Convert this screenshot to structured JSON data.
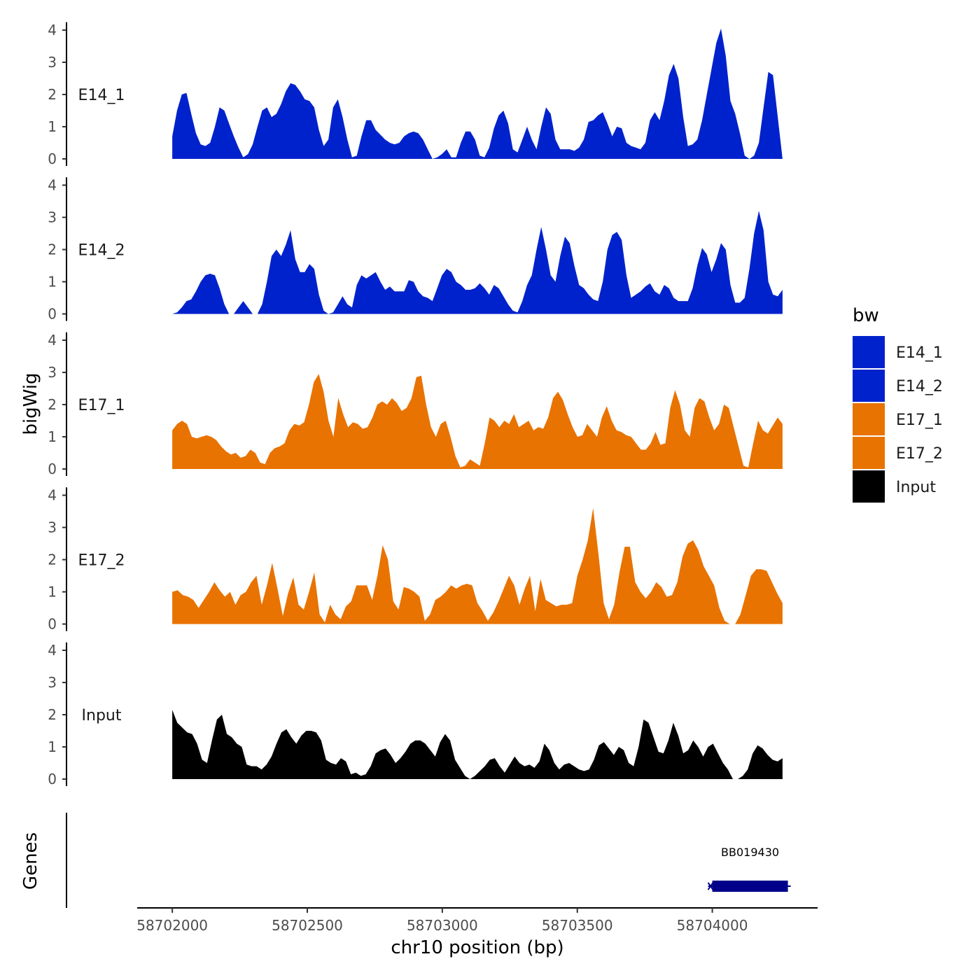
{
  "chart_data": {
    "type": "area",
    "title": "",
    "ylabel": "bigWig",
    "xlabel": "chr10 position (bp)",
    "genes_label": "Genes",
    "ylim": [
      0,
      4.2
    ],
    "yticks": [
      0,
      1,
      2,
      3,
      4
    ],
    "xlim": [
      58701870,
      58704390
    ],
    "xticks": [
      58702000,
      58702500,
      58703000,
      58703500,
      58704000
    ],
    "x_start": 58702000,
    "x_end": 58704260,
    "legend": {
      "title": "bw",
      "entries": [
        {
          "name": "E14_1",
          "color": "#0022CC"
        },
        {
          "name": "E14_2",
          "color": "#0022CC"
        },
        {
          "name": "E17_1",
          "color": "#E87300"
        },
        {
          "name": "E17_2",
          "color": "#E87300"
        },
        {
          "name": "Input",
          "color": "#000000"
        }
      ]
    },
    "series": [
      {
        "name": "E14_1",
        "color": "#0022CC",
        "values": [
          0.7,
          1.5,
          2.0,
          2.05,
          1.4,
          0.8,
          0.45,
          0.4,
          0.5,
          1.0,
          1.6,
          1.5,
          1.1,
          0.7,
          0.35,
          0.05,
          0.15,
          0.45,
          1.0,
          1.5,
          1.6,
          1.3,
          1.4,
          1.7,
          2.1,
          2.35,
          2.3,
          2.1,
          1.85,
          1.8,
          1.6,
          0.9,
          0.4,
          0.6,
          1.6,
          1.85,
          1.3,
          0.6,
          0.05,
          0.1,
          0.7,
          1.2,
          1.2,
          0.9,
          0.75,
          0.6,
          0.5,
          0.45,
          0.5,
          0.7,
          0.8,
          0.85,
          0.8,
          0.6,
          0.3,
          0.0,
          0.05,
          0.15,
          0.3,
          0.05,
          0.05,
          0.5,
          0.85,
          0.85,
          0.6,
          0.1,
          0.05,
          0.35,
          0.95,
          1.35,
          1.5,
          1.1,
          0.3,
          0.2,
          0.6,
          1.0,
          0.6,
          0.3,
          1.0,
          1.6,
          1.4,
          0.6,
          0.3,
          0.3,
          0.3,
          0.25,
          0.35,
          0.6,
          1.15,
          1.2,
          1.35,
          1.45,
          1.1,
          0.7,
          1.0,
          0.95,
          0.5,
          0.4,
          0.35,
          0.3,
          0.5,
          1.2,
          1.45,
          1.2,
          1.8,
          2.6,
          2.95,
          2.5,
          1.3,
          0.4,
          0.45,
          0.6,
          1.2,
          2.0,
          2.8,
          3.6,
          4.05,
          3.2,
          1.8,
          1.4,
          0.8,
          0.1,
          0.0,
          0.1,
          0.5,
          1.6,
          2.7,
          2.6,
          1.3,
          0.0
        ]
      },
      {
        "name": "E14_2",
        "color": "#0022CC",
        "values": [
          0.0,
          0.05,
          0.2,
          0.4,
          0.45,
          0.7,
          1.0,
          1.2,
          1.25,
          1.2,
          0.8,
          0.3,
          0.0,
          0.0,
          0.2,
          0.4,
          0.2,
          0.0,
          0.0,
          0.3,
          1.0,
          1.8,
          2.0,
          1.8,
          2.15,
          2.6,
          1.7,
          1.3,
          1.3,
          1.55,
          1.4,
          0.6,
          0.1,
          0.0,
          0.05,
          0.3,
          0.55,
          0.3,
          0.2,
          0.9,
          1.2,
          1.1,
          1.2,
          1.3,
          1.0,
          0.75,
          0.85,
          0.7,
          0.7,
          0.7,
          1.05,
          1.0,
          0.7,
          0.55,
          0.5,
          0.4,
          0.8,
          1.2,
          1.4,
          1.3,
          1.0,
          0.9,
          0.75,
          0.75,
          0.8,
          0.95,
          0.8,
          0.6,
          0.9,
          0.8,
          0.55,
          0.3,
          0.1,
          0.05,
          0.4,
          0.9,
          1.2,
          2.0,
          2.7,
          2.0,
          1.2,
          1.0,
          1.8,
          2.4,
          2.2,
          1.5,
          0.9,
          0.8,
          0.6,
          0.45,
          0.4,
          1.0,
          2.0,
          2.45,
          2.55,
          2.3,
          1.2,
          0.5,
          0.6,
          0.7,
          0.85,
          0.95,
          0.7,
          0.6,
          0.9,
          0.8,
          0.5,
          0.4,
          0.4,
          0.4,
          0.8,
          1.5,
          2.05,
          1.85,
          1.3,
          1.7,
          2.2,
          2.0,
          0.9,
          0.35,
          0.35,
          0.5,
          1.4,
          2.5,
          3.2,
          2.6,
          1.0,
          0.6,
          0.55,
          0.75
        ]
      },
      {
        "name": "E17_1",
        "color": "#E87300",
        "values": [
          1.2,
          1.4,
          1.5,
          1.4,
          1.0,
          0.95,
          1.0,
          1.05,
          1.0,
          0.9,
          0.7,
          0.55,
          0.45,
          0.5,
          0.35,
          0.4,
          0.6,
          0.5,
          0.2,
          0.15,
          0.5,
          0.65,
          0.7,
          0.8,
          1.2,
          1.4,
          1.35,
          1.45,
          2.0,
          2.7,
          2.95,
          2.4,
          1.5,
          1.0,
          2.2,
          1.7,
          1.3,
          1.45,
          1.4,
          1.25,
          1.3,
          1.6,
          2.0,
          2.1,
          2.0,
          2.2,
          2.05,
          1.8,
          1.9,
          2.2,
          2.85,
          2.9,
          2.0,
          1.3,
          1.0,
          1.4,
          1.5,
          1.0,
          0.4,
          0.05,
          0.1,
          0.3,
          0.2,
          0.1,
          0.8,
          1.6,
          1.5,
          1.3,
          1.5,
          1.4,
          1.7,
          1.3,
          1.4,
          1.5,
          1.2,
          1.3,
          1.25,
          1.6,
          2.2,
          2.4,
          2.15,
          1.7,
          1.3,
          1.0,
          1.05,
          1.4,
          1.2,
          1.0,
          1.6,
          1.95,
          1.5,
          1.2,
          1.15,
          1.05,
          1.0,
          0.8,
          0.6,
          0.6,
          0.8,
          1.15,
          0.75,
          0.8,
          1.9,
          2.45,
          2.0,
          1.2,
          1.0,
          1.9,
          2.2,
          2.1,
          1.6,
          1.2,
          1.4,
          2.0,
          1.9,
          1.3,
          0.7,
          0.1,
          0.05,
          0.8,
          1.5,
          1.2,
          1.1,
          1.35,
          1.6,
          1.4
        ]
      },
      {
        "name": "E17_2",
        "color": "#E87300",
        "values": [
          1.0,
          1.05,
          0.9,
          0.85,
          0.75,
          0.5,
          0.75,
          1.0,
          1.3,
          1.05,
          0.85,
          1.0,
          0.6,
          0.9,
          1.0,
          1.3,
          1.5,
          0.6,
          1.2,
          1.9,
          1.1,
          0.25,
          0.95,
          1.45,
          0.6,
          0.45,
          1.0,
          1.6,
          0.3,
          0.05,
          0.6,
          0.3,
          0.15,
          0.55,
          0.7,
          1.2,
          1.2,
          1.2,
          0.75,
          1.5,
          2.45,
          2.0,
          0.7,
          0.45,
          1.15,
          1.1,
          1.0,
          0.85,
          0.1,
          0.3,
          0.75,
          0.85,
          1.0,
          1.2,
          1.1,
          1.2,
          1.25,
          1.2,
          0.65,
          0.4,
          0.1,
          0.35,
          0.7,
          1.1,
          1.5,
          1.2,
          0.6,
          1.1,
          1.5,
          0.4,
          1.4,
          0.75,
          0.65,
          0.55,
          0.6,
          0.6,
          0.65,
          1.5,
          2.0,
          2.6,
          3.6,
          2.2,
          0.65,
          0.15,
          0.6,
          1.6,
          2.4,
          2.4,
          1.3,
          1.0,
          0.8,
          1.0,
          1.3,
          1.15,
          0.85,
          0.9,
          1.3,
          2.1,
          2.5,
          2.6,
          2.3,
          1.8,
          1.5,
          1.2,
          0.5,
          0.1,
          0.0,
          0.0,
          0.3,
          0.9,
          1.5,
          1.7,
          1.7,
          1.65,
          1.3,
          0.95,
          0.65
        ]
      },
      {
        "name": "Input",
        "color": "#000000",
        "values": [
          2.15,
          1.75,
          1.6,
          1.45,
          1.4,
          1.1,
          0.6,
          0.5,
          1.2,
          1.85,
          2.0,
          1.4,
          1.3,
          1.1,
          1.0,
          0.45,
          0.4,
          0.4,
          0.3,
          0.45,
          0.7,
          1.1,
          1.45,
          1.55,
          1.3,
          1.1,
          1.35,
          1.5,
          1.5,
          1.45,
          1.2,
          0.6,
          0.5,
          0.45,
          0.65,
          0.55,
          0.15,
          0.2,
          0.1,
          0.15,
          0.4,
          0.8,
          0.9,
          0.95,
          0.75,
          0.5,
          0.65,
          0.85,
          1.1,
          1.2,
          1.2,
          1.1,
          0.9,
          0.7,
          1.15,
          1.4,
          1.2,
          0.6,
          0.35,
          0.1,
          0.0,
          0.1,
          0.25,
          0.4,
          0.6,
          0.65,
          0.4,
          0.2,
          0.45,
          0.7,
          0.5,
          0.4,
          0.45,
          0.35,
          0.55,
          1.1,
          0.9,
          0.5,
          0.3,
          0.45,
          0.5,
          0.4,
          0.3,
          0.25,
          0.3,
          0.6,
          1.05,
          1.15,
          0.95,
          0.75,
          1.0,
          0.9,
          0.5,
          0.4,
          1.0,
          1.85,
          1.75,
          1.3,
          0.85,
          0.8,
          1.2,
          1.75,
          1.35,
          0.8,
          0.9,
          1.2,
          1.0,
          0.7,
          1.0,
          1.1,
          0.8,
          0.5,
          0.3,
          0.0,
          0.0,
          0.1,
          0.3,
          0.8,
          1.05,
          0.95,
          0.75,
          0.6,
          0.55,
          0.65
        ]
      }
    ],
    "genes": [
      {
        "name": "BB019430",
        "start": 58704000,
        "end": 58704280,
        "strand": "-",
        "color": "#00008B"
      }
    ]
  }
}
